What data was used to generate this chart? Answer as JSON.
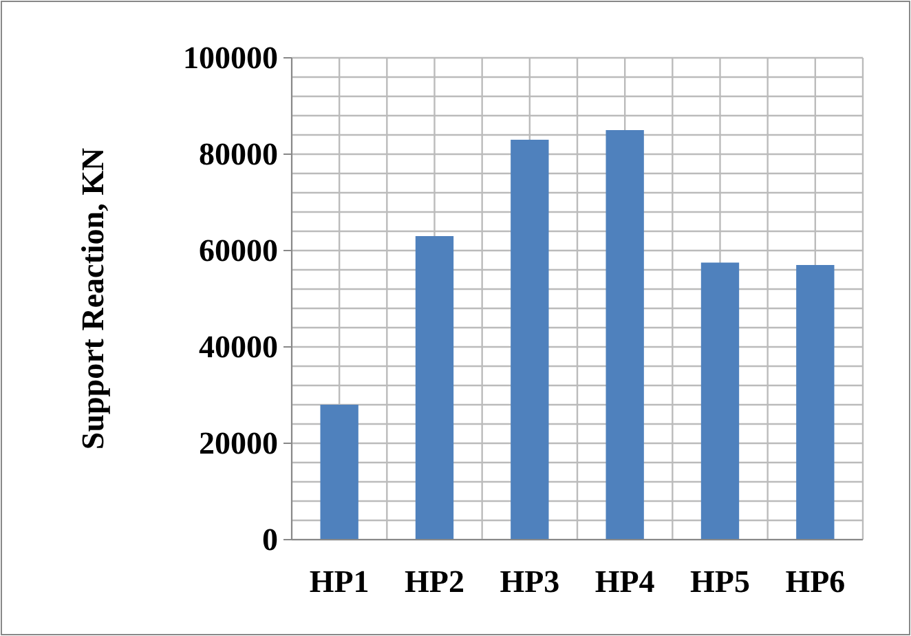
{
  "chart_data": {
    "type": "bar",
    "ylabel": "Support Reaction, KN",
    "categories": [
      "HP1",
      "HP2",
      "HP3",
      "HP4",
      "HP5",
      "HP6"
    ],
    "values": [
      28000,
      63000,
      83000,
      85000,
      57500,
      57000
    ],
    "color": "#4f81bd",
    "ylim": [
      0,
      100000
    ],
    "yticks": [
      0,
      {
        "value": 4000,
        "label": null
      },
      {
        "value": 8000,
        "label": null
      },
      {
        "value": 12000,
        "label": null
      },
      {
        "value": 16000,
        "label": null
      },
      20000,
      {
        "value": 24000,
        "label": null
      },
      {
        "value": 28000,
        "label": null
      },
      {
        "value": 32000,
        "label": null
      },
      {
        "value": 36000,
        "label": null
      },
      40000,
      {
        "value": 44000,
        "label": null
      },
      {
        "value": 48000,
        "label": null
      },
      {
        "value": 52000,
        "label": null
      },
      {
        "value": 56000,
        "label": null
      },
      60000,
      {
        "value": 64000,
        "label": null
      },
      {
        "value": 68000,
        "label": null
      },
      {
        "value": 72000,
        "label": null
      },
      {
        "value": 76000,
        "label": null
      },
      80000,
      {
        "value": 84000,
        "label": null
      },
      {
        "value": 88000,
        "label": null
      },
      {
        "value": 92000,
        "label": null
      },
      {
        "value": 96000,
        "label": null
      },
      100000
    ],
    "grid": true
  }
}
